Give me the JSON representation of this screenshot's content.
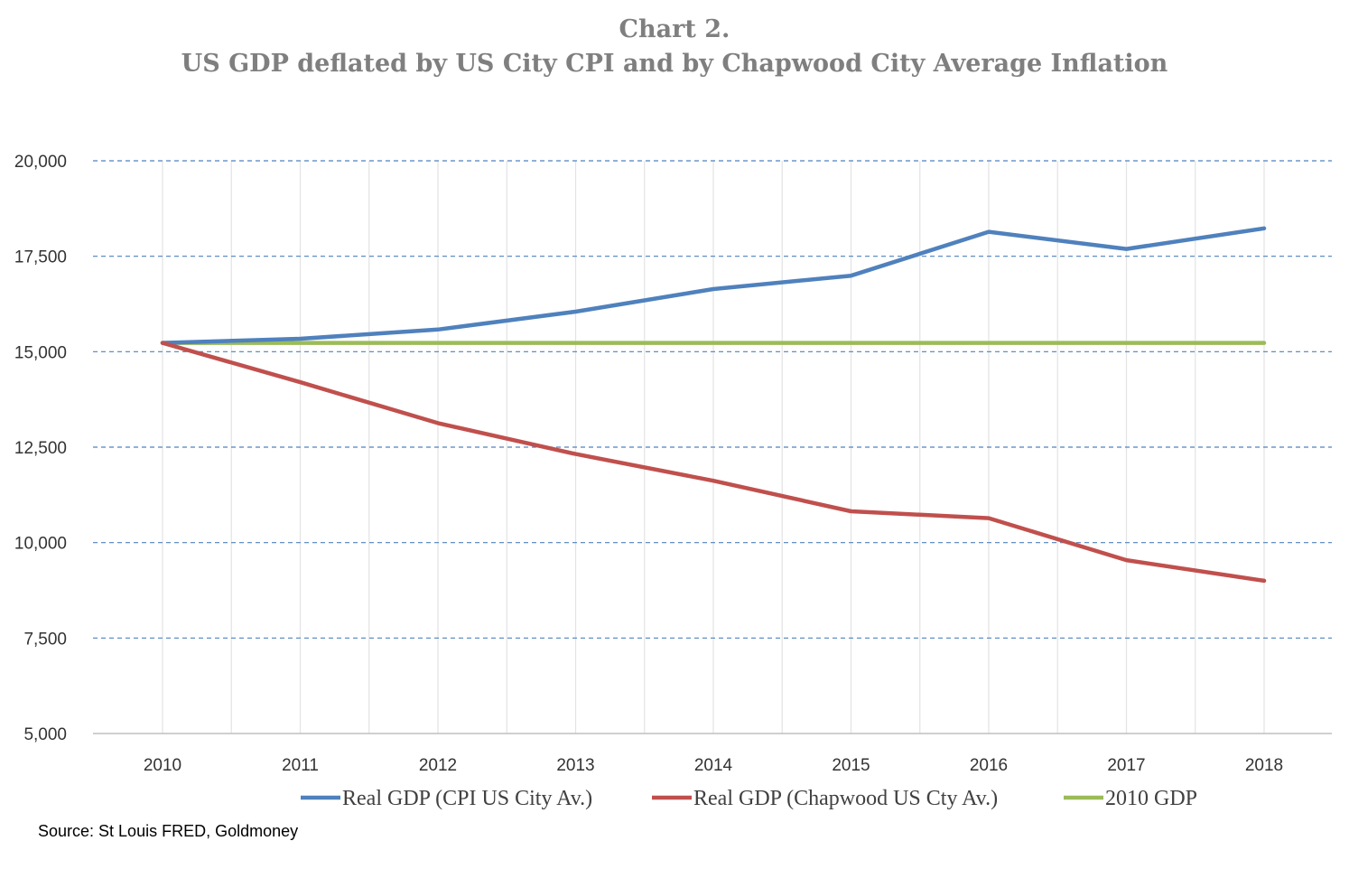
{
  "chart_data": {
    "type": "line",
    "title": "Chart 2.",
    "subtitle": "US GDP deflated by US City CPI and by Chapwood City Average Inflation",
    "xlabel": "",
    "ylabel": "",
    "x": [
      "2010",
      "2011",
      "2012",
      "2013",
      "2014",
      "2015",
      "2016",
      "2017",
      "2018"
    ],
    "ylim": [
      5000,
      20000
    ],
    "yticks": [
      5000,
      7500,
      10000,
      12500,
      15000,
      17500,
      20000
    ],
    "ytick_labels": [
      "5,000",
      "7,500",
      "10,000",
      "12,500",
      "15,000",
      "17,500",
      "20,000"
    ],
    "grid": "horizontal dashed",
    "legend_position": "bottom",
    "series": [
      {
        "name": "Real GDP (CPI US City Av.)",
        "color": "#4f81bd",
        "values": [
          15230,
          15340,
          15580,
          16050,
          16640,
          16990,
          18140,
          17690,
          18230
        ]
      },
      {
        "name": "Real GDP (Chapwood US Cty Av.)",
        "color": "#c0504d",
        "values": [
          15230,
          14200,
          13130,
          12320,
          11620,
          10820,
          10640,
          9540,
          9000
        ]
      },
      {
        "name": "2010 GDP",
        "color": "#9bbb59",
        "values": [
          15230,
          15230,
          15230,
          15230,
          15230,
          15230,
          15230,
          15230,
          15230
        ]
      }
    ]
  },
  "source": "Source: St Louis FRED, Goldmoney"
}
